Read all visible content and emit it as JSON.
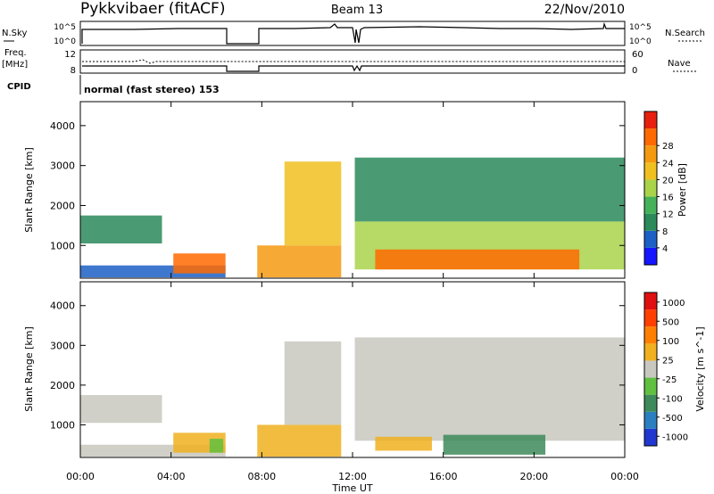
{
  "header": {
    "title": "Pykkvibaer (fitACF)",
    "beam": "Beam 13",
    "date": "22/Nov/2010"
  },
  "top_panels": {
    "nsky_label": "N.Sky",
    "nsky_ticks": [
      "10^5",
      "10^0"
    ],
    "nsearch_label": "N.Search",
    "nsearch_ticks": [
      "10^5",
      "10^0"
    ],
    "freq_label_line1": "Freq.",
    "freq_label_line2": "[MHz]",
    "freq_ticks": [
      "12",
      "8"
    ],
    "nave_label": "Nave",
    "nave_ticks": [
      "60",
      "0"
    ],
    "cpid_label": "CPID",
    "cpid_text": "normal (fast stereo) 153"
  },
  "chart_data": [
    {
      "type": "heatmap",
      "title": "",
      "xlabel": "Time UT",
      "ylabel": "Slant Range [km]",
      "xlim": [
        0,
        24
      ],
      "ylim": [
        180,
        4600
      ],
      "x_ticks": [
        "00:00",
        "04:00",
        "08:00",
        "12:00",
        "16:00",
        "20:00",
        "00:00"
      ],
      "y_ticks": [
        "1000",
        "2000",
        "3000",
        "4000"
      ],
      "colorbar": {
        "label": "Power [dB]",
        "ticks": [
          "4",
          "8",
          "12",
          "16",
          "20",
          "24",
          "28"
        ],
        "colors": [
          "#1515ff",
          "#1c5fc6",
          "#2a8a5a",
          "#45b25a",
          "#a9d44a",
          "#f0c020",
          "#f59a10",
          "#ff6a00",
          "#e82010"
        ]
      },
      "data_gaps_ut": [
        [
          6.4,
          7.8
        ],
        [
          11.5,
          12.1
        ]
      ],
      "regions": [
        {
          "t0": 0.0,
          "t1": 3.6,
          "r0": 1050,
          "r1": 1750,
          "level": 2
        },
        {
          "t0": 0.0,
          "t1": 6.4,
          "r0": 200,
          "r1": 500,
          "level": 1
        },
        {
          "t0": 4.1,
          "t1": 6.4,
          "r0": 300,
          "r1": 800,
          "level": 7
        },
        {
          "t0": 7.8,
          "t1": 11.5,
          "r0": 200,
          "r1": 1000,
          "level": 6
        },
        {
          "t0": 9.0,
          "t1": 11.5,
          "r0": 1000,
          "r1": 3100,
          "level": 5
        },
        {
          "t0": 12.1,
          "t1": 24.0,
          "r0": 400,
          "r1": 1600,
          "level": 4
        },
        {
          "t0": 12.1,
          "t1": 24.0,
          "r0": 1600,
          "r1": 3200,
          "level": 2
        },
        {
          "t0": 13.0,
          "t1": 22.0,
          "r0": 400,
          "r1": 900,
          "level": 7
        }
      ]
    },
    {
      "type": "heatmap",
      "title": "",
      "xlabel": "Time UT",
      "ylabel": "Slant Range [km]",
      "xlim": [
        0,
        24
      ],
      "ylim": [
        180,
        4600
      ],
      "x_ticks": [
        "00:00",
        "04:00",
        "08:00",
        "12:00",
        "16:00",
        "20:00",
        "00:00"
      ],
      "y_ticks": [
        "1000",
        "2000",
        "3000",
        "4000"
      ],
      "colorbar": {
        "label": "Velocity [m s^-1]",
        "ticks": [
          "1000",
          "500",
          "100",
          "25",
          "-25",
          "-100",
          "-500",
          "-1000"
        ],
        "colors": [
          "#2038d0",
          "#2a7fc0",
          "#3e8a5a",
          "#60c040",
          "#c8c8c0",
          "#f0b020",
          "#ff8000",
          "#ff4000",
          "#e01010"
        ]
      },
      "data_gaps_ut": [
        [
          6.4,
          7.8
        ],
        [
          11.5,
          12.1
        ]
      ],
      "regions": [
        {
          "t0": 0.0,
          "t1": 3.6,
          "r0": 1050,
          "r1": 1750,
          "level": 4
        },
        {
          "t0": 0.0,
          "t1": 6.4,
          "r0": 200,
          "r1": 500,
          "level": 4
        },
        {
          "t0": 4.1,
          "t1": 6.4,
          "r0": 300,
          "r1": 800,
          "level": 5
        },
        {
          "t0": 5.7,
          "t1": 6.3,
          "r0": 300,
          "r1": 650,
          "level": 3
        },
        {
          "t0": 7.8,
          "t1": 11.5,
          "r0": 200,
          "r1": 1000,
          "level": 5
        },
        {
          "t0": 9.0,
          "t1": 11.5,
          "r0": 1000,
          "r1": 3100,
          "level": 4
        },
        {
          "t0": 12.1,
          "t1": 24.0,
          "r0": 600,
          "r1": 3200,
          "level": 4
        },
        {
          "t0": 16.0,
          "t1": 20.5,
          "r0": 250,
          "r1": 750,
          "level": 2
        },
        {
          "t0": 13.0,
          "t1": 15.5,
          "r0": 350,
          "r1": 700,
          "level": 5
        }
      ]
    }
  ]
}
